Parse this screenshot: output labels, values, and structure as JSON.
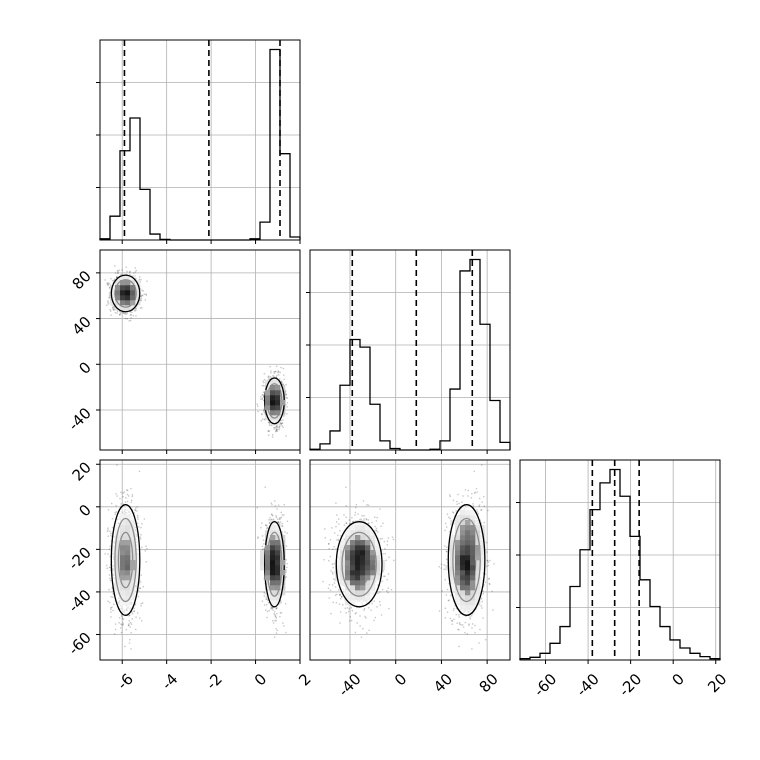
{
  "chart_data": {
    "type": "corner",
    "grid": true,
    "colors": {
      "hist": "#000000",
      "grid": "#b0b0b0",
      "point": "#000000",
      "contour": "#000000"
    },
    "params": [
      {
        "range": [
          -7.0,
          2.0
        ],
        "ticks": [
          "-6",
          "-4",
          "-2",
          "0",
          "2"
        ],
        "tick_values": [
          -6,
          -4,
          -2,
          0,
          2
        ]
      },
      {
        "range": [
          -75.0,
          100.0
        ],
        "ticks": [
          "-40",
          "0",
          "40",
          "80"
        ],
        "tick_values": [
          -40,
          0,
          40,
          80
        ]
      },
      {
        "range": [
          -72.0,
          22.0
        ],
        "ticks": [
          "-60",
          "-40",
          "-20",
          "0",
          "20"
        ],
        "tick_values": [
          -60,
          -40,
          -20,
          0,
          20
        ]
      }
    ],
    "quantiles": [
      [
        -5.9,
        -2.1,
        1.1
      ],
      [
        -38.0,
        18.0,
        67.0
      ],
      [
        -38.0,
        -27.5,
        -16.0
      ]
    ],
    "histograms": [
      {
        "bin_edges": [
          -7.0,
          -6.55,
          -6.1,
          -5.65,
          -5.2,
          -4.75,
          -4.3,
          -3.85,
          -3.4,
          -2.95,
          -2.5,
          -2.05,
          -1.6,
          -1.15,
          -0.7,
          -0.25,
          0.2,
          0.65,
          1.1,
          1.55,
          2.0
        ],
        "counts": [
          2,
          40,
          150,
          205,
          85,
          10,
          1,
          0,
          0,
          0,
          0,
          0,
          0,
          0,
          0,
          2,
          30,
          320,
          145,
          5
        ]
      },
      {
        "bin_edges": [
          -75,
          -66.25,
          -57.5,
          -48.75,
          -40,
          -31.25,
          -22.5,
          -13.75,
          -5,
          3.75,
          12.5,
          21.25,
          30,
          38.75,
          47.5,
          56.25,
          65,
          73.75,
          82.5,
          91.25,
          100
        ],
        "counts": [
          1,
          8,
          25,
          85,
          145,
          135,
          60,
          12,
          2,
          0,
          0,
          0,
          1,
          12,
          80,
          235,
          250,
          165,
          65,
          10
        ]
      },
      {
        "bin_edges": [
          -72,
          -67.3,
          -62.6,
          -57.9,
          -53.2,
          -48.5,
          -43.8,
          -39.1,
          -34.4,
          -29.7,
          -25.0,
          -20.3,
          -15.6,
          -10.9,
          -6.2,
          -1.5,
          3.2,
          7.9,
          12.6,
          17.3,
          22
        ],
        "counts": [
          2,
          4,
          10,
          25,
          50,
          110,
          165,
          225,
          265,
          285,
          245,
          185,
          120,
          80,
          50,
          30,
          18,
          10,
          5,
          2
        ]
      }
    ],
    "clusters": [
      {
        "means": [
          -5.85,
          62,
          -25
        ],
        "sds": [
          0.32,
          8,
          13
        ],
        "weight": 0.5
      },
      {
        "means": [
          0.85,
          -32,
          -27
        ],
        "sds": [
          0.22,
          10,
          10
        ],
        "weight": 0.5
      }
    ],
    "n_points": 2400
  }
}
